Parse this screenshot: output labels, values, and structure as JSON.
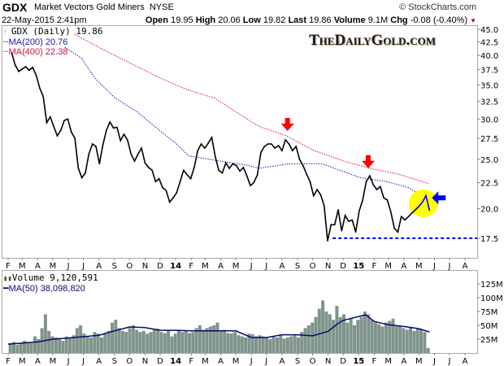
{
  "header": {
    "symbol": "GDX",
    "name": "Market Vectors Gold Miners",
    "exchange": "NYSE",
    "source": "© StockCharts.com",
    "datetime": "22-May-2015 2:41pm",
    "open_label": "Open",
    "open": "19.95",
    "high_label": "High",
    "high": "20.06",
    "low_label": "Low",
    "low": "19.82",
    "last_label": "Last",
    "last": "19.86",
    "volume_label": "Volume",
    "volume": "9.1M",
    "chg_label": "Chg",
    "chg": "-0.08 (-0.40%)",
    "chg_icon": "down-triangle"
  },
  "watermark": "TheDailyGold.com",
  "colors": {
    "price": "#000000",
    "ma200": "#1a1a9e",
    "ma400": "#d0103a",
    "volume": "#7f958c",
    "vol_ma": "#0a0a6e",
    "annotation_red": "#ff0000",
    "annotation_blue": "#0000ff",
    "highlight": "#ffff00",
    "support": "#0000ff"
  },
  "chart_data": [
    {
      "type": "line",
      "title": "GDX (Daily) 19.86",
      "legend": [
        {
          "name": "MA(200) 20.76",
          "color": "#1a1a9e"
        },
        {
          "name": "MA(400) 22.38",
          "color": "#d0103a"
        }
      ],
      "legend_placement": "top-left",
      "y_scale": "log",
      "ylim": [
        16.0,
        45.8
      ],
      "y_ticks": [
        "45.0",
        "42.5",
        "40.0",
        "37.5",
        "35.0",
        "32.5",
        "30.0",
        "27.5",
        "25.0",
        "22.5",
        "20.0",
        "17.5"
      ],
      "x_ticks": [
        {
          "label": "F",
          "date": "2013-02-01"
        },
        {
          "label": "M",
          "date": "2013-03-01"
        },
        {
          "label": "A",
          "date": "2013-04-01"
        },
        {
          "label": "M",
          "date": "2013-05-01"
        },
        {
          "label": "J",
          "date": "2013-06-01"
        },
        {
          "label": "J",
          "date": "2013-07-01"
        },
        {
          "label": "A",
          "date": "2013-08-01"
        },
        {
          "label": "S",
          "date": "2013-09-01"
        },
        {
          "label": "O",
          "date": "2013-10-01"
        },
        {
          "label": "N",
          "date": "2013-11-01"
        },
        {
          "label": "D",
          "date": "2013-12-01"
        },
        {
          "label": "14",
          "date": "2014-01-01",
          "year": true
        },
        {
          "label": "F",
          "date": "2014-02-01"
        },
        {
          "label": "M",
          "date": "2014-03-01"
        },
        {
          "label": "A",
          "date": "2014-04-01"
        },
        {
          "label": "M",
          "date": "2014-05-01"
        },
        {
          "label": "J",
          "date": "2014-06-01"
        },
        {
          "label": "J",
          "date": "2014-07-01"
        },
        {
          "label": "A",
          "date": "2014-08-01"
        },
        {
          "label": "S",
          "date": "2014-09-01"
        },
        {
          "label": "O",
          "date": "2014-10-01"
        },
        {
          "label": "N",
          "date": "2014-11-01"
        },
        {
          "label": "D",
          "date": "2014-12-01"
        },
        {
          "label": "15",
          "date": "2015-01-01",
          "year": true
        },
        {
          "label": "F",
          "date": "2015-02-01"
        },
        {
          "label": "M",
          "date": "2015-03-01"
        },
        {
          "label": "A",
          "date": "2015-04-01"
        },
        {
          "label": "M",
          "date": "2015-05-01"
        },
        {
          "label": "J",
          "date": "2015-06-01"
        },
        {
          "label": "J",
          "date": "2015-07-01"
        },
        {
          "label": "A",
          "date": "2015-08-01"
        }
      ],
      "dates": [
        "2013-02-08",
        "2013-02-15",
        "2013-02-22",
        "2013-03-01",
        "2013-03-08",
        "2013-03-15",
        "2013-03-22",
        "2013-03-29",
        "2013-04-05",
        "2013-04-12",
        "2013-04-19",
        "2013-04-26",
        "2013-05-03",
        "2013-05-10",
        "2013-05-17",
        "2013-05-24",
        "2013-05-31",
        "2013-06-07",
        "2013-06-14",
        "2013-06-21",
        "2013-06-28",
        "2013-07-05",
        "2013-07-12",
        "2013-07-19",
        "2013-07-26",
        "2013-08-02",
        "2013-08-09",
        "2013-08-16",
        "2013-08-23",
        "2013-08-30",
        "2013-09-06",
        "2013-09-13",
        "2013-09-20",
        "2013-09-27",
        "2013-10-04",
        "2013-10-11",
        "2013-10-18",
        "2013-10-25",
        "2013-11-01",
        "2013-11-08",
        "2013-11-15",
        "2013-11-22",
        "2013-11-29",
        "2013-12-06",
        "2013-12-13",
        "2013-12-20",
        "2013-12-27",
        "2014-01-03",
        "2014-01-10",
        "2014-01-17",
        "2014-01-24",
        "2014-01-31",
        "2014-02-07",
        "2014-02-14",
        "2014-02-21",
        "2014-02-28",
        "2014-03-07",
        "2014-03-14",
        "2014-03-21",
        "2014-03-28",
        "2014-04-04",
        "2014-04-11",
        "2014-04-18",
        "2014-04-25",
        "2014-05-02",
        "2014-05-09",
        "2014-05-16",
        "2014-05-23",
        "2014-05-30",
        "2014-06-06",
        "2014-06-13",
        "2014-06-20",
        "2014-06-27",
        "2014-07-04",
        "2014-07-11",
        "2014-07-18",
        "2014-07-25",
        "2014-08-01",
        "2014-08-08",
        "2014-08-15",
        "2014-08-22",
        "2014-08-29",
        "2014-09-05",
        "2014-09-12",
        "2014-09-19",
        "2014-09-26",
        "2014-10-03",
        "2014-10-10",
        "2014-10-17",
        "2014-10-24",
        "2014-10-31",
        "2014-11-07",
        "2014-11-14",
        "2014-11-21",
        "2014-11-28",
        "2014-12-05",
        "2014-12-12",
        "2014-12-19",
        "2014-12-26",
        "2015-01-02",
        "2015-01-09",
        "2015-01-16",
        "2015-01-23",
        "2015-01-30",
        "2015-02-06",
        "2015-02-13",
        "2015-02-20",
        "2015-02-27",
        "2015-03-06",
        "2015-03-13",
        "2015-03-20",
        "2015-03-27",
        "2015-04-03",
        "2015-04-10",
        "2015-04-17",
        "2015-04-24",
        "2015-05-01",
        "2015-05-08",
        "2015-05-15",
        "2015-05-22"
      ],
      "close": [
        40.5,
        38.3,
        37.2,
        37.6,
        38.0,
        37.4,
        37.9,
        36.5,
        34.5,
        33.2,
        29.5,
        30.3,
        29.0,
        27.8,
        28.5,
        29.8,
        30.0,
        28.3,
        27.5,
        24.0,
        23.0,
        23.5,
        25.6,
        26.8,
        26.5,
        24.5,
        26.7,
        28.5,
        29.6,
        28.8,
        28.9,
        27.2,
        28.0,
        27.3,
        25.6,
        24.8,
        25.6,
        26.3,
        24.6,
        24.1,
        23.8,
        22.6,
        22.9,
        22.0,
        21.7,
        20.6,
        21.0,
        21.5,
        22.6,
        23.8,
        23.3,
        22.9,
        24.1,
        26.0,
        26.8,
        26.3,
        26.9,
        27.6,
        25.3,
        23.8,
        23.5,
        24.6,
        24.0,
        24.5,
        24.3,
        23.7,
        24.1,
        23.2,
        22.2,
        22.5,
        23.3,
        25.8,
        26.5,
        26.8,
        26.8,
        26.3,
        26.6,
        26.0,
        27.3,
        26.8,
        26.0,
        26.5,
        25.0,
        24.3,
        23.4,
        22.6,
        21.2,
        21.8,
        21.3,
        20.3,
        17.3,
        18.6,
        18.6,
        19.9,
        18.1,
        19.4,
        18.9,
        19.0,
        18.0,
        19.8,
        20.8,
        22.6,
        23.2,
        22.3,
        21.8,
        22.1,
        21.0,
        20.8,
        19.7,
        18.3,
        18.0,
        19.3,
        19.0,
        19.3,
        19.6,
        19.9,
        20.2,
        20.6,
        21.2,
        19.86
      ],
      "ma200": [
        [
          "2013-05-25",
          41.5
        ],
        [
          "2013-06-27",
          39.5
        ],
        [
          "2013-07-25",
          36.0
        ],
        [
          "2013-09-02",
          33.0
        ],
        [
          "2013-10-16",
          31.0
        ],
        [
          "2013-11-24",
          28.8
        ],
        [
          "2014-01-01",
          26.9
        ],
        [
          "2014-01-27",
          25.4
        ],
        [
          "2014-03-31",
          24.8
        ],
        [
          "2014-05-28",
          24.3
        ],
        [
          "2014-06-15",
          24.0
        ],
        [
          "2014-08-16",
          24.5
        ],
        [
          "2014-10-20",
          24.5
        ],
        [
          "2015-01-05",
          23.0
        ],
        [
          "2015-02-26",
          22.6
        ],
        [
          "2015-04-10",
          22.0
        ],
        [
          "2015-05-22",
          20.76
        ]
      ],
      "ma400": [
        [
          "2013-06-13",
          44.0
        ],
        [
          "2013-08-17",
          40.7
        ],
        [
          "2013-10-12",
          38.2
        ],
        [
          "2013-12-04",
          36.0
        ],
        [
          "2014-01-22",
          34.3
        ],
        [
          "2014-03-19",
          33.0
        ],
        [
          "2014-05-28",
          29.8
        ],
        [
          "2014-06-20",
          28.9
        ],
        [
          "2014-08-10",
          27.8
        ],
        [
          "2014-10-04",
          26.0
        ],
        [
          "2014-12-02",
          24.8
        ],
        [
          "2015-01-24",
          24.0
        ],
        [
          "2015-03-20",
          23.4
        ],
        [
          "2015-05-22",
          22.38
        ]
      ],
      "annotations": {
        "red_arrows": [
          [
            "2014-08-12",
            27.8
          ],
          [
            "2015-01-20",
            23.5
          ]
        ],
        "blue_arrow": [
          "2015-05-22",
          21.0
        ],
        "highlight_circle": [
          "2015-05-10",
          20.5
        ],
        "highlight_from": "2015-05-01",
        "support_line": {
          "value": 17.5,
          "from": "2014-11-10"
        }
      }
    },
    {
      "type": "bar",
      "title": "Volume 9,120,591",
      "legend": [
        {
          "name": "MA(50) 38,098,820",
          "color": "#0a0a6e"
        }
      ],
      "unit": "M",
      "ylim": [
        0,
        140
      ],
      "y_ticks": [
        "125M",
        "100M",
        "75M",
        "50M",
        "25M"
      ],
      "values": [
        18,
        20,
        15,
        17,
        22,
        20,
        18,
        30,
        25,
        45,
        70,
        40,
        30,
        28,
        25,
        22,
        30,
        28,
        32,
        45,
        50,
        35,
        30,
        28,
        38,
        35,
        28,
        35,
        40,
        55,
        60,
        45,
        40,
        38,
        45,
        50,
        42,
        38,
        40,
        35,
        38,
        42,
        44,
        38,
        36,
        40,
        30,
        35,
        42,
        38,
        40,
        36,
        38,
        45,
        50,
        42,
        45,
        48,
        50,
        55,
        40,
        42,
        36,
        35,
        38,
        32,
        30,
        28,
        35,
        34,
        30,
        32,
        30,
        28,
        25,
        30,
        28,
        32,
        26,
        28,
        30,
        32,
        28,
        38,
        45,
        50,
        55,
        65,
        80,
        95,
        75,
        70,
        60,
        85,
        65,
        70,
        55,
        62,
        50,
        60,
        65,
        75,
        70,
        60,
        55,
        52,
        48,
        55,
        58,
        62,
        50,
        48,
        45,
        42,
        46,
        40,
        44,
        42,
        38,
        9.1
      ],
      "ma50": [
        [
          "2013-02-01",
          16
        ],
        [
          "2013-04-01",
          20
        ],
        [
          "2013-05-01",
          25
        ],
        [
          "2013-06-01",
          27
        ],
        [
          "2013-08-01",
          32
        ],
        [
          "2013-09-01",
          40
        ],
        [
          "2013-10-01",
          47
        ],
        [
          "2013-11-01",
          46
        ],
        [
          "2013-12-01",
          41
        ],
        [
          "2014-01-01",
          41
        ],
        [
          "2014-02-01",
          40
        ],
        [
          "2014-03-01",
          40
        ],
        [
          "2014-04-01",
          40
        ],
        [
          "2014-05-01",
          40
        ],
        [
          "2014-06-01",
          28
        ],
        [
          "2014-07-01",
          28
        ],
        [
          "2014-08-01",
          33
        ],
        [
          "2014-09-01",
          33
        ],
        [
          "2014-10-01",
          31
        ],
        [
          "2014-11-01",
          39
        ],
        [
          "2014-11-20",
          53
        ],
        [
          "2014-12-01",
          59
        ],
        [
          "2015-01-01",
          66
        ],
        [
          "2015-01-15",
          69
        ],
        [
          "2015-02-01",
          57
        ],
        [
          "2015-03-01",
          51
        ],
        [
          "2015-04-01",
          48
        ],
        [
          "2015-05-01",
          44
        ],
        [
          "2015-05-22",
          38.1
        ]
      ]
    }
  ]
}
